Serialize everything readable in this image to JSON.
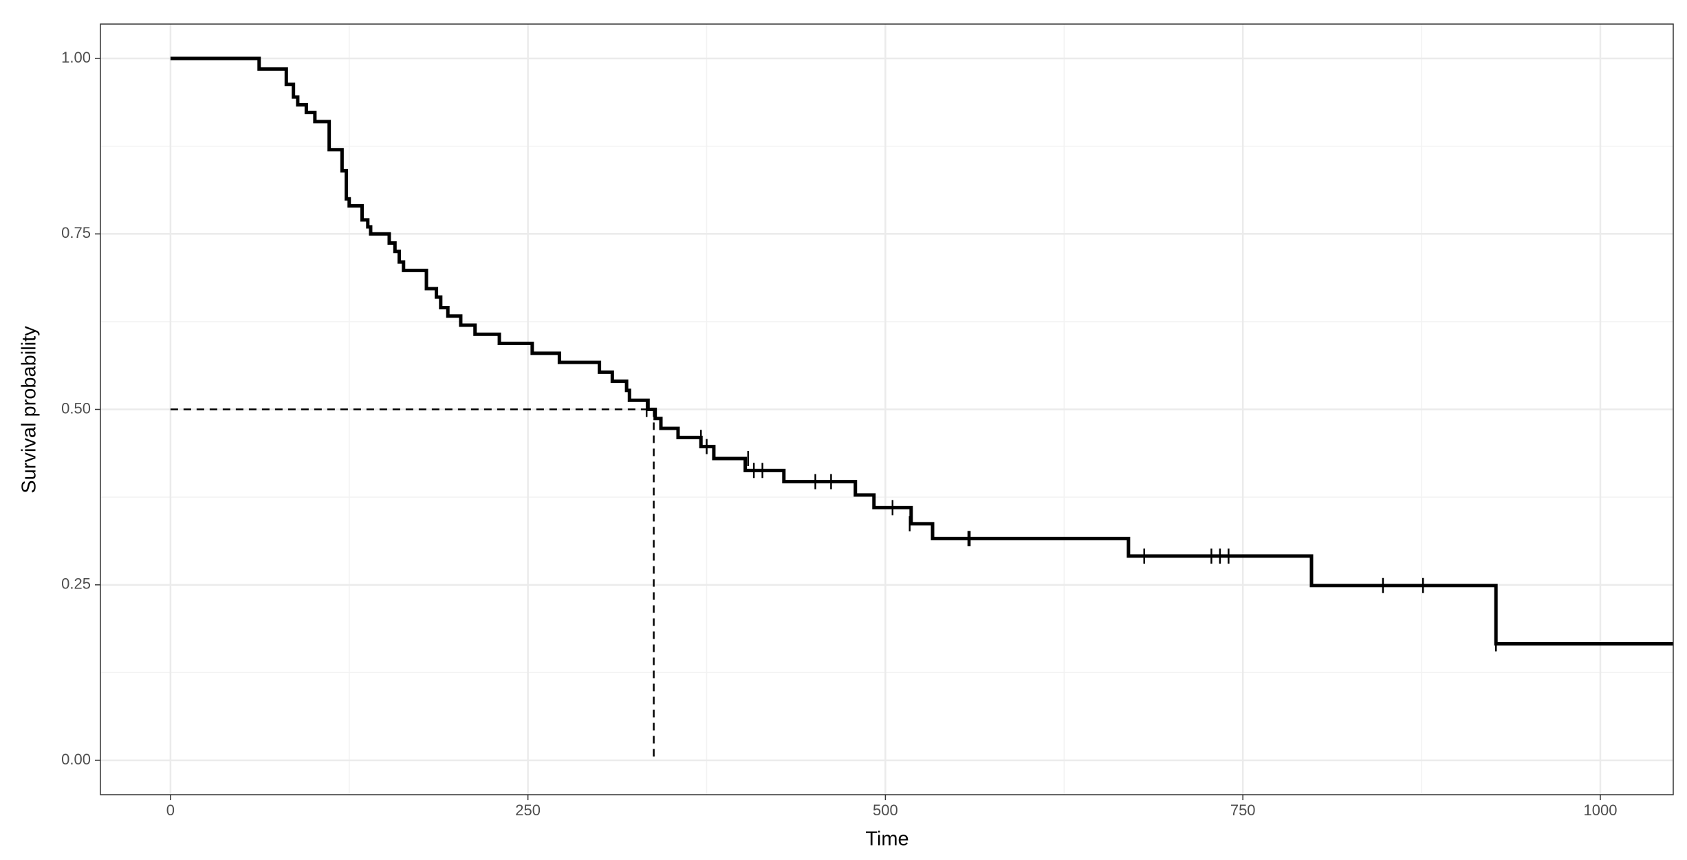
{
  "chart_data": {
    "type": "step",
    "x_label": "Time",
    "y_label": "Survival probability",
    "x": [
      0,
      62,
      81,
      86,
      89,
      95,
      101,
      111,
      120,
      123,
      125,
      134,
      138,
      140,
      153,
      157,
      160,
      163,
      179,
      186,
      189,
      194,
      203,
      213,
      230,
      253,
      272,
      300,
      309,
      319,
      321,
      334,
      339,
      343,
      355,
      371,
      380,
      402,
      429,
      479,
      492,
      518,
      533,
      670,
      798,
      927
    ],
    "values": [
      1.0,
      0.985,
      0.963,
      0.945,
      0.934,
      0.923,
      0.91,
      0.87,
      0.84,
      0.8,
      0.79,
      0.77,
      0.76,
      0.75,
      0.737,
      0.725,
      0.71,
      0.698,
      0.672,
      0.66,
      0.645,
      0.633,
      0.62,
      0.607,
      0.594,
      0.58,
      0.567,
      0.553,
      0.54,
      0.527,
      0.513,
      0.5,
      0.487,
      0.473,
      0.46,
      0.447,
      0.43,
      0.413,
      0.397,
      0.378,
      0.36,
      0.337,
      0.316,
      0.291,
      0.249,
      0.166
    ],
    "censor_x": [
      333,
      371,
      375,
      404,
      408,
      414,
      451,
      462,
      505,
      517,
      558,
      559,
      681,
      728,
      734,
      740,
      848,
      876,
      927
    ],
    "censor_values": [
      0.5,
      0.46,
      0.447,
      0.43,
      0.413,
      0.413,
      0.397,
      0.397,
      0.36,
      0.337,
      0.316,
      0.316,
      0.291,
      0.291,
      0.291,
      0.291,
      0.249,
      0.249,
      0.166
    ],
    "median_time": 338,
    "median_survival": 0.5,
    "color": "#000000",
    "xlim": [
      -49,
      1051
    ],
    "ylim": [
      -0.049,
      1.049
    ],
    "xticks": [
      0,
      250,
      500,
      750,
      1000
    ],
    "yticks": [
      {
        "value": 0,
        "label": "0.00"
      },
      {
        "value": 0.25,
        "label": "0.25"
      },
      {
        "value": 0.5,
        "label": "0.50"
      },
      {
        "value": 0.75,
        "label": "0.75"
      },
      {
        "value": 1,
        "label": "1.00"
      }
    ],
    "x_minor_grid": [
      125,
      375,
      625,
      875
    ],
    "y_minor_grid": [
      0.125,
      0.375,
      0.625,
      0.875
    ],
    "grid": true
  }
}
